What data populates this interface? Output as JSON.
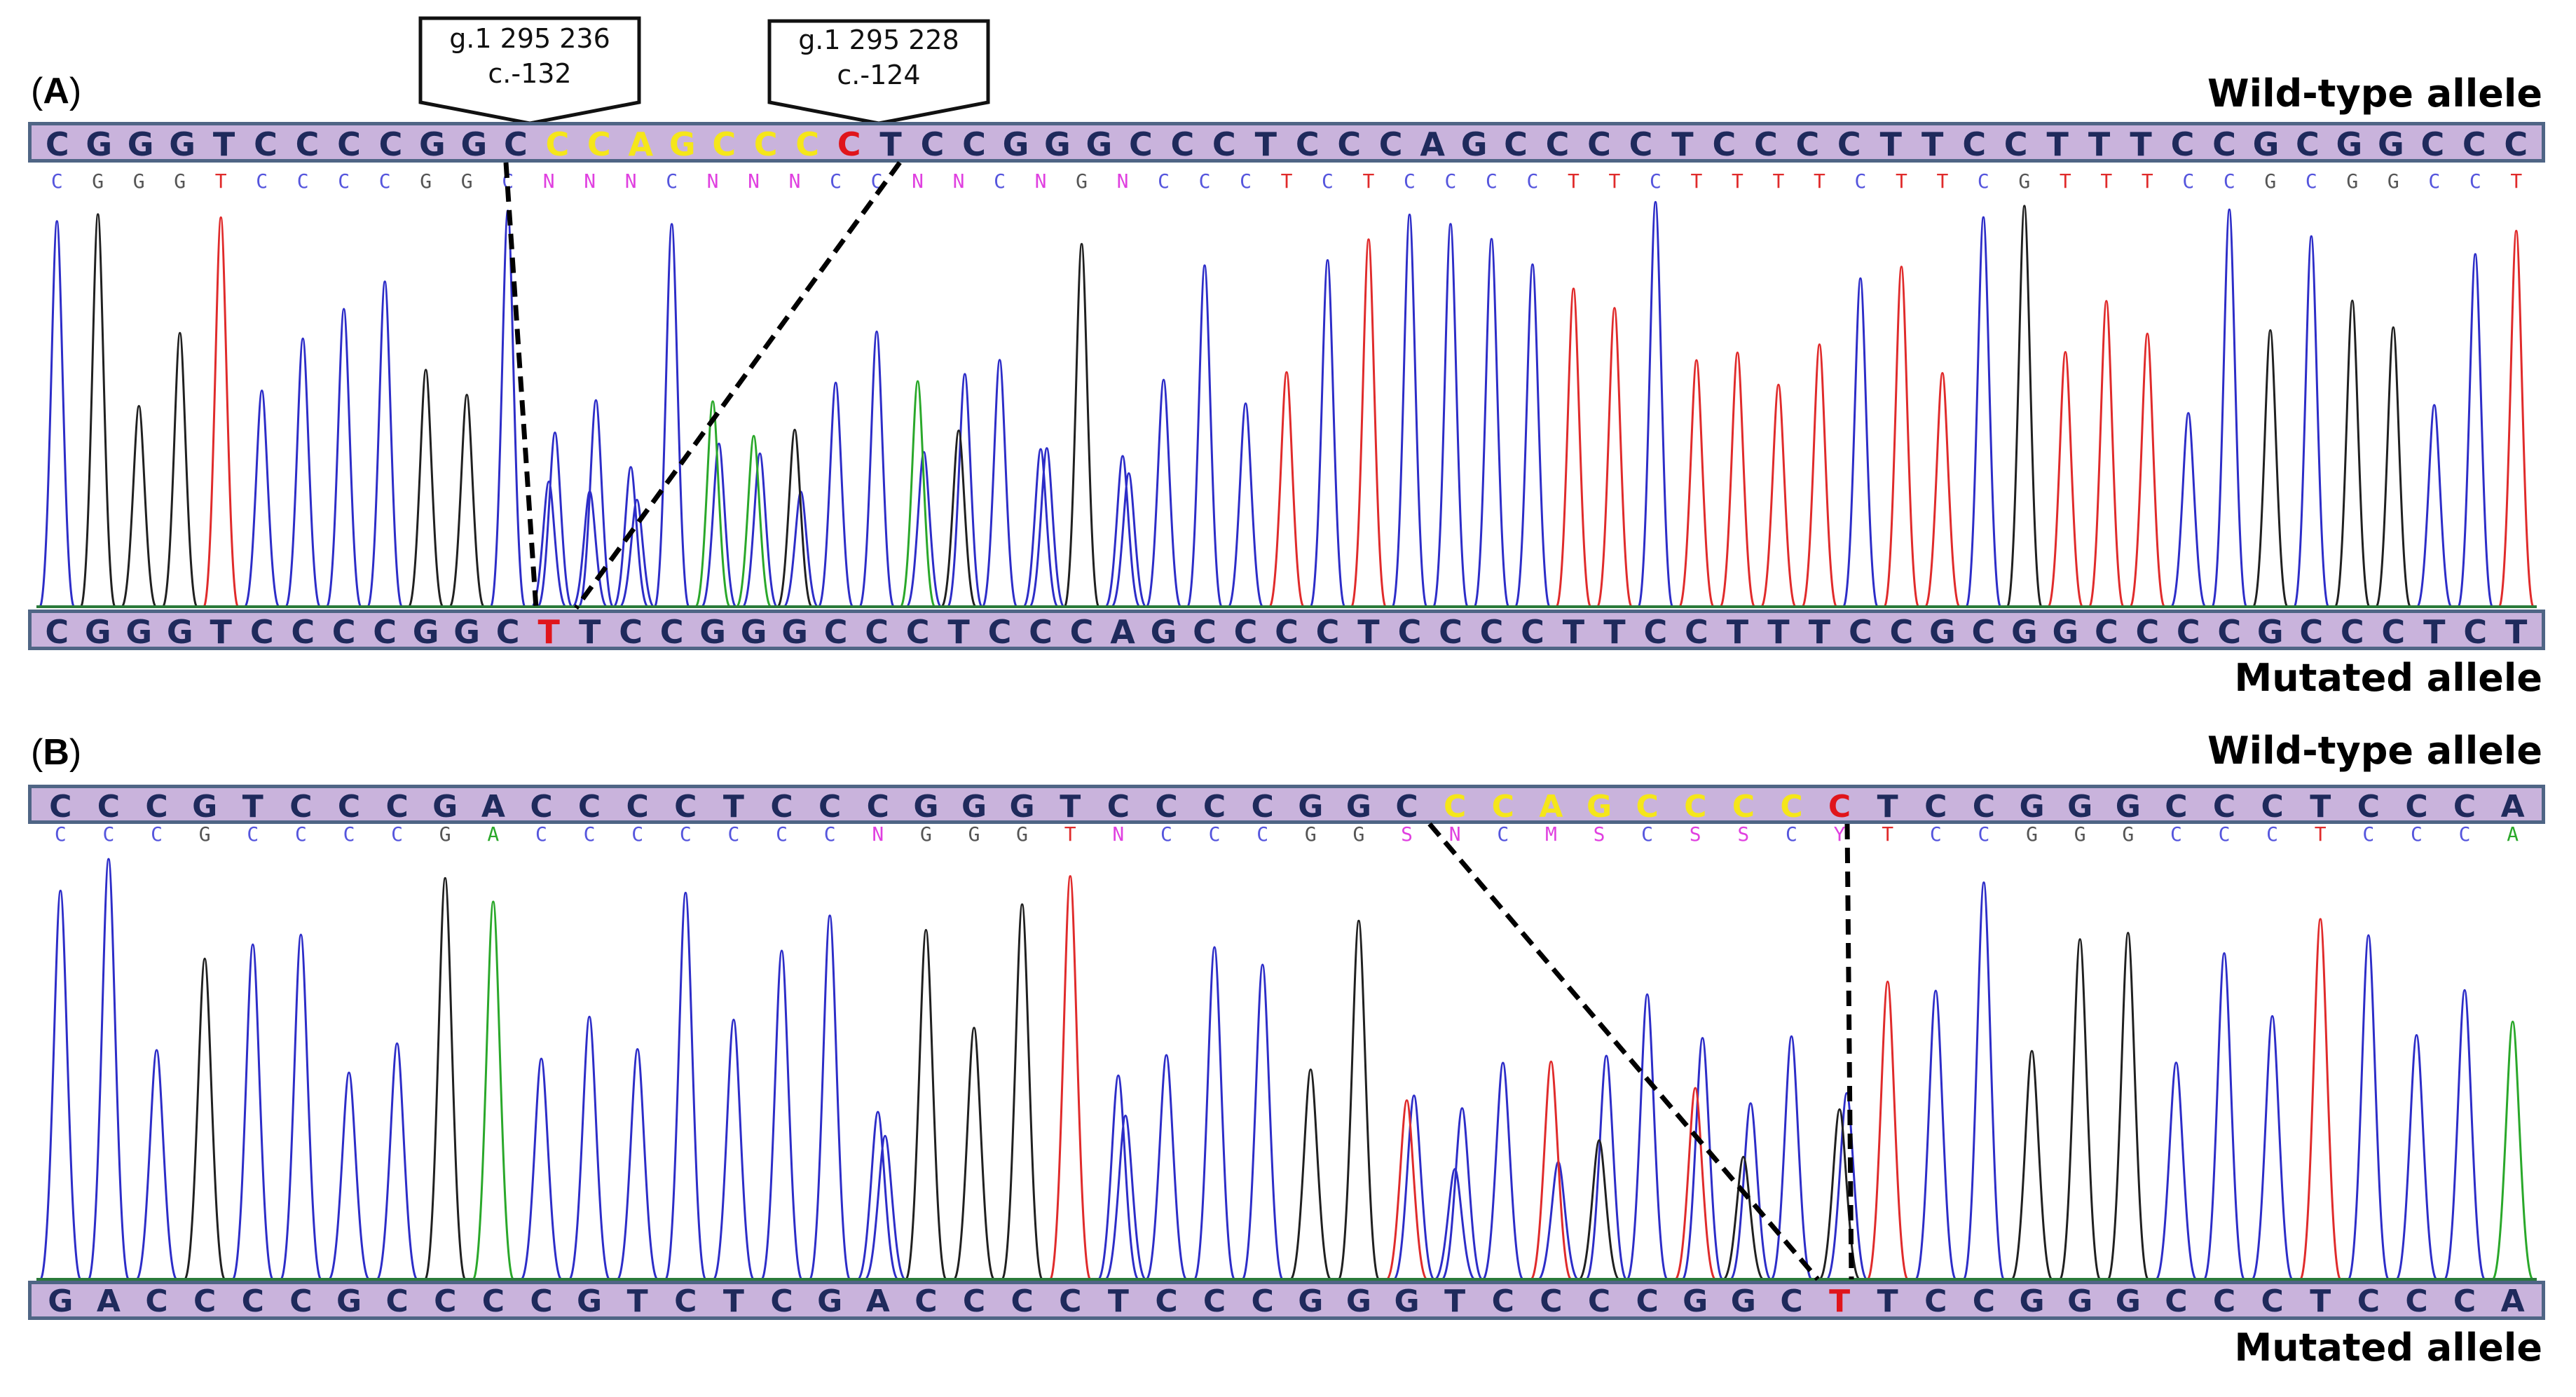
{
  "figure": {
    "panels": [
      {
        "id": "A",
        "label": "A",
        "top_label": "Wild-type allele",
        "bottom_label": "Mutated allele",
        "callouts": [
          {
            "line1": "g.1 295 236",
            "line2": "c.-132"
          },
          {
            "line1": "g.1 295 228",
            "line2": "c.-124"
          }
        ],
        "wild_type_sequence": "CGGGTCCCCGGCCCAGCCCCTCCGGGCCCTCCCAGCCCCTCCCCTTCCTTTCCGCGGCCC",
        "deleted_region": "CCAGCCC",
        "mutation_site_base": "C",
        "called_bases": "CGGGTCCCCGGCNNNCNNNCCNNCNGNCCCTCTCCCCTTCTTTTCTTCGTTTCCGCGGCCT",
        "mutated_sequence": "CGGGTCCCCGGCTTCCGGGCCCTCCCAGCCCCTCCCCTTCCTTTCCGCGGCCCCGCCCTCT",
        "mutated_highlight_base": "T"
      },
      {
        "id": "B",
        "label": "B",
        "top_label": "Wild-type allele",
        "bottom_label": "Mutated allele",
        "wild_type_sequence": "CCCGTCCCGACCCCTCCCGGGTCCCCGGCCCAGCCCCCTCCGGGCCCTCCCA",
        "deleted_region": "CCAGCCCC",
        "mutation_site_base": "C",
        "called_bases": "CCCGCCCCGACCCCCCCNGGGTNCCCGGSNCMSCSSCYTCCGGGCCCTCCCA",
        "mutated_sequence": "GACCCCGCCCCGTCTCGACCCCTCCCGGGTCCCCGGCTTCCGGGCCCTCCCA",
        "mutated_highlight_base": "T"
      }
    ],
    "colors": {
      "bar_fill": "#c9b3dc",
      "bar_border": "#4f6585",
      "base_text": "#1f2a5c",
      "deleted_highlight": "#f5e61a",
      "mutation_highlight": "#e0151b",
      "trace_A": "#2aa82a",
      "trace_C": "#2d2dc8",
      "trace_G": "#202020",
      "trace_T": "#e02b2b",
      "trace_N": "#e040e0"
    }
  }
}
